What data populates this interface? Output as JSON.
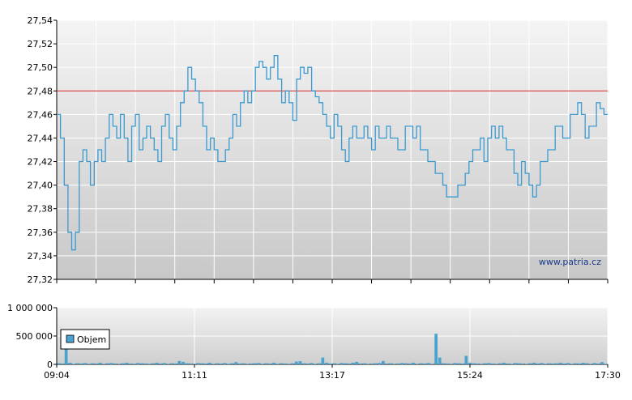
{
  "watermark": "www.patria.cz",
  "legend": {
    "label": "Objem",
    "color": "#4aa3cf"
  },
  "colors": {
    "line": "#3a9ad0",
    "reference": "#d62020",
    "bars": "#4aa3cf"
  },
  "chart_data": [
    {
      "type": "line",
      "ylim": [
        27.32,
        27.54
      ],
      "y_ticks": [
        "27,32",
        "27,34",
        "27,36",
        "27,38",
        "27,40",
        "27,42",
        "27,44",
        "27,46",
        "27,48",
        "27,50",
        "27,52",
        "27,54"
      ],
      "reference_line": 27.48,
      "x_range": [
        "09:04",
        "17:30"
      ],
      "series": [
        {
          "values": [
            27.46,
            27.44,
            27.4,
            27.36,
            27.345,
            27.36,
            27.42,
            27.43,
            27.42,
            27.4,
            27.42,
            27.43,
            27.42,
            27.44,
            27.46,
            27.45,
            27.44,
            27.46,
            27.44,
            27.42,
            27.45,
            27.46,
            27.43,
            27.44,
            27.45,
            27.44,
            27.43,
            27.42,
            27.45,
            27.46,
            27.44,
            27.43,
            27.45,
            27.47,
            27.48,
            27.5,
            27.49,
            27.48,
            27.47,
            27.45,
            27.43,
            27.44,
            27.43,
            27.42,
            27.42,
            27.43,
            27.44,
            27.46,
            27.45,
            27.47,
            27.48,
            27.47,
            27.48,
            27.5,
            27.505,
            27.5,
            27.49,
            27.5,
            27.51,
            27.49,
            27.47,
            27.48,
            27.47,
            27.455,
            27.49,
            27.5,
            27.495,
            27.5,
            27.48,
            27.475,
            27.47,
            27.46,
            27.45,
            27.44,
            27.46,
            27.45,
            27.43,
            27.42,
            27.44,
            27.45,
            27.44,
            27.44,
            27.45,
            27.44,
            27.43,
            27.45,
            27.44,
            27.44,
            27.45,
            27.44,
            27.44,
            27.43,
            27.43,
            27.45,
            27.45,
            27.44,
            27.45,
            27.43,
            27.43,
            27.42,
            27.42,
            27.41,
            27.41,
            27.4,
            27.39,
            27.39,
            27.39,
            27.4,
            27.4,
            27.41,
            27.42,
            27.43,
            27.43,
            27.44,
            27.42,
            27.44,
            27.45,
            27.44,
            27.45,
            27.44,
            27.43,
            27.43,
            27.41,
            27.4,
            27.42,
            27.41,
            27.4,
            27.39,
            27.4,
            27.42,
            27.42,
            27.43,
            27.43,
            27.45,
            27.45,
            27.44,
            27.44,
            27.46,
            27.46,
            27.47,
            27.46,
            27.44,
            27.45,
            27.45,
            27.47,
            27.465,
            27.46
          ]
        }
      ]
    },
    {
      "type": "bar",
      "ylim": [
        0,
        1000000
      ],
      "y_ticks": [
        "0",
        "500 000",
        "1 000 000"
      ],
      "x_ticks": [
        "09:04",
        "11:11",
        "13:17",
        "15:24",
        "17:30"
      ],
      "series": [
        {
          "name": "Objem",
          "values": [
            20000,
            15000,
            300000,
            30000,
            10000,
            20000,
            15000,
            25000,
            10000,
            20000,
            15000,
            30000,
            10000,
            20000,
            25000,
            15000,
            10000,
            20000,
            30000,
            15000,
            10000,
            25000,
            20000,
            15000,
            10000,
            20000,
            30000,
            15000,
            25000,
            10000,
            20000,
            15000,
            60000,
            45000,
            20000,
            15000,
            10000,
            25000,
            20000,
            15000,
            30000,
            10000,
            20000,
            15000,
            25000,
            10000,
            20000,
            40000,
            15000,
            20000,
            10000,
            15000,
            20000,
            25000,
            10000,
            20000,
            15000,
            30000,
            10000,
            20000,
            15000,
            10000,
            20000,
            50000,
            55000,
            20000,
            15000,
            25000,
            10000,
            20000,
            120000,
            30000,
            15000,
            20000,
            10000,
            25000,
            20000,
            15000,
            30000,
            45000,
            15000,
            20000,
            10000,
            15000,
            20000,
            25000,
            60000,
            15000,
            20000,
            10000,
            15000,
            25000,
            20000,
            15000,
            30000,
            10000,
            20000,
            15000,
            25000,
            10000,
            540000,
            120000,
            20000,
            15000,
            10000,
            25000,
            20000,
            15000,
            150000,
            30000,
            20000,
            15000,
            10000,
            20000,
            25000,
            15000,
            10000,
            20000,
            30000,
            15000,
            10000,
            25000,
            20000,
            15000,
            10000,
            20000,
            30000,
            15000,
            25000,
            10000,
            20000,
            15000,
            20000,
            30000,
            15000,
            25000,
            10000,
            20000,
            15000,
            30000,
            20000,
            10000,
            25000,
            15000,
            40000,
            10000
          ]
        }
      ]
    }
  ]
}
